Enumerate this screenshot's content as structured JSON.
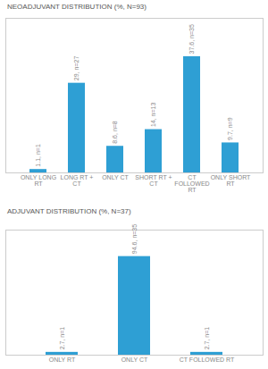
{
  "chart_data": [
    {
      "type": "bar",
      "title": "NEOADJUVANT DISTRIBUTION (%, N=93)",
      "categories": [
        "ONLY LONG\nRT",
        "LONG RT +\nCT",
        "ONLY CT",
        "SHORT RT +\nCT",
        "CT\nFOLLOWED\nRT",
        "ONLY SHORT\nRT"
      ],
      "values": [
        1.1,
        29.0,
        8.6,
        14.0,
        37.6,
        9.7
      ],
      "value_labels": [
        "1.1, n=1",
        "29, n=27",
        "8.6, n=8",
        "14, n=13",
        "37.6, n=35",
        "9.7, n=9"
      ],
      "color": "#2e9fd4",
      "ylim": [
        0,
        50
      ],
      "data_labels": true,
      "tick_labels": "x",
      "grid": false
    },
    {
      "type": "bar",
      "title": "ADJUVANT DISTRIBUTION (%, N=37)",
      "categories": [
        "ONLY RT",
        "ONLY CT",
        "CT FOLLOWED RT"
      ],
      "values": [
        2.7,
        94.6,
        2.7
      ],
      "value_labels": [
        "2.7, n=1",
        "94.6, n=35",
        "2.7, n=1"
      ],
      "color": "#2e9fd4",
      "ylim": [
        0,
        120
      ],
      "data_labels": true,
      "tick_labels": "x",
      "grid": false
    }
  ]
}
